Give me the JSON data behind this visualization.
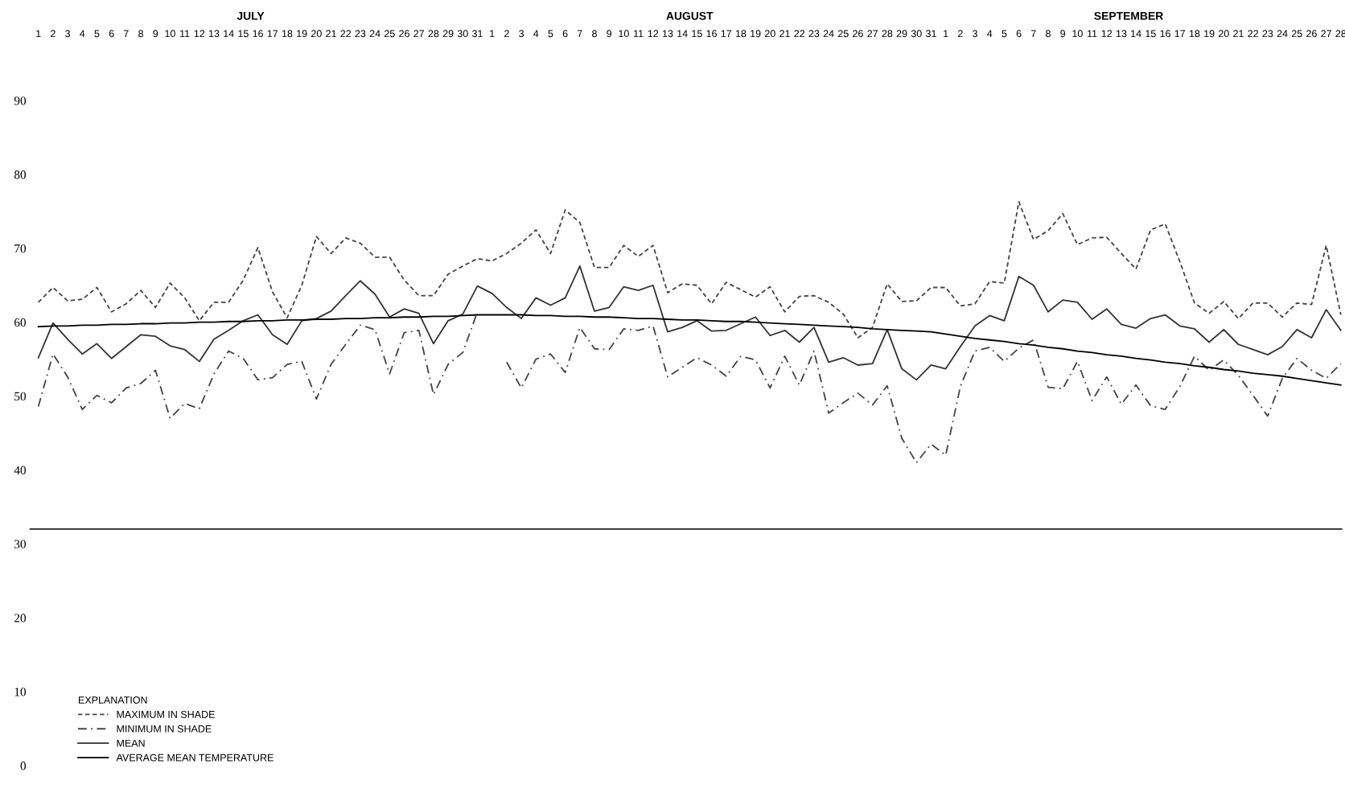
{
  "chart_data": {
    "type": "line",
    "categories": [
      "1",
      "2",
      "3",
      "4",
      "5",
      "6",
      "7",
      "8",
      "9",
      "10",
      "11",
      "12",
      "13",
      "14",
      "15",
      "16",
      "17",
      "18",
      "19",
      "20",
      "21",
      "22",
      "23",
      "24",
      "25",
      "26",
      "27",
      "28",
      "29",
      "30",
      "31",
      "1",
      "2",
      "3",
      "4",
      "5",
      "6",
      "7",
      "8",
      "9",
      "10",
      "11",
      "12",
      "13",
      "14",
      "15",
      "16",
      "17",
      "18",
      "19",
      "20",
      "21",
      "22",
      "23",
      "24",
      "25",
      "26",
      "27",
      "28",
      "29",
      "30",
      "31",
      "1",
      "2",
      "3",
      "4",
      "5",
      "6",
      "7",
      "8",
      "9",
      "10",
      "11",
      "12",
      "13",
      "14",
      "15",
      "16",
      "17",
      "18",
      "19",
      "20",
      "21",
      "22",
      "23",
      "24",
      "25",
      "26",
      "27",
      "28"
    ],
    "series": [
      {
        "name": "MAXIMUM IN SHADE",
        "color": "#444444",
        "line_style": "dashed",
        "values": [
          62.7,
          64.7,
          62.9,
          63.1,
          64.7,
          61.4,
          62.5,
          64.3,
          62.0,
          65.3,
          63.3,
          60.2,
          62.7,
          62.7,
          65.7,
          70.1,
          64.1,
          60.6,
          65.0,
          71.6,
          69.3,
          71.4,
          70.7,
          68.8,
          68.8,
          65.7,
          63.6,
          63.6,
          66.5,
          67.6,
          68.6,
          68.3,
          69.3,
          70.7,
          72.5,
          69.3,
          75.2,
          73.5,
          67.4,
          67.4,
          70.4,
          68.9,
          70.4,
          64.0,
          65.2,
          65.0,
          62.5,
          65.4,
          64.4,
          63.4,
          64.8,
          61.4,
          63.5,
          63.6,
          62.7,
          61.1,
          57.9,
          59.3,
          65.2,
          62.8,
          62.9,
          64.7,
          64.7,
          62.2,
          62.5,
          65.5,
          65.3,
          76.3,
          71.2,
          72.4,
          74.7,
          70.5,
          71.4,
          71.5,
          69.3,
          67.2,
          72.5,
          73.3,
          68.2,
          62.6,
          61.2,
          62.8,
          60.5,
          62.6,
          62.6,
          60.7,
          62.6,
          62.4,
          70.4,
          61.0
        ]
      },
      {
        "name": "MINIMUM IN SHADE",
        "color": "#444444",
        "line_style": "dashdot",
        "values": [
          48.6,
          55.7,
          52.6,
          48.2,
          50.1,
          49.1,
          51.1,
          51.7,
          53.5,
          47.0,
          49.0,
          48.3,
          53.0,
          56.1,
          55.1,
          52.2,
          52.5,
          54.3,
          54.7,
          49.6,
          54.3,
          57.0,
          59.6,
          59.0,
          53.0,
          58.6,
          58.9,
          50.2,
          54.3,
          55.9,
          61.4,
          null,
          54.6,
          51.1,
          55.0,
          55.7,
          53.2,
          59.3,
          56.4,
          56.3,
          59.1,
          58.9,
          59.5,
          52.6,
          53.9,
          55.2,
          54.2,
          52.7,
          55.4,
          54.9,
          51.1,
          55.4,
          51.5,
          56.1,
          47.7,
          49.1,
          50.4,
          48.8,
          51.4,
          44.3,
          41.0,
          43.5,
          42.0,
          51.3,
          56.1,
          56.6,
          54.7,
          56.5,
          57.6,
          51.2,
          51.0,
          54.7,
          49.4,
          52.6,
          48.9,
          51.5,
          48.7,
          48.2,
          51.3,
          55.4,
          53.5,
          54.9,
          52.8,
          50.1,
          47.3,
          52.4,
          55.1,
          53.5,
          52.4,
          54.4
        ]
      },
      {
        "name": "MEAN",
        "color": "#333333",
        "line_style": "solid",
        "values": [
          55.2,
          59.9,
          57.7,
          55.7,
          57.1,
          55.1,
          56.7,
          58.3,
          58.1,
          56.8,
          56.3,
          54.7,
          57.7,
          58.9,
          60.2,
          61.0,
          58.3,
          57.0,
          60.2,
          60.5,
          61.5,
          63.6,
          65.6,
          63.8,
          60.7,
          61.8,
          61.2,
          57.1,
          60.2,
          61.1,
          64.9,
          63.9,
          62.0,
          60.5,
          63.3,
          62.3,
          63.3,
          67.6,
          61.5,
          62.0,
          64.8,
          64.3,
          65.0,
          58.7,
          59.3,
          60.2,
          58.8,
          58.9,
          59.8,
          60.7,
          58.2,
          58.9,
          57.3,
          59.3,
          54.6,
          55.2,
          54.2,
          54.4,
          59.0,
          53.7,
          52.2,
          54.2,
          53.7,
          56.7,
          59.5,
          60.9,
          60.2,
          66.2,
          65.0,
          61.4,
          63.0,
          62.7,
          60.4,
          61.8,
          59.7,
          59.2,
          60.5,
          61.0,
          59.5,
          59.1,
          57.3,
          59.0,
          57.0,
          56.3,
          55.6,
          56.7,
          59.0,
          57.9,
          61.7,
          58.9
        ]
      },
      {
        "name": "AVERAGE MEAN TEMPERATURE",
        "color": "#000000",
        "line_style": "solid",
        "values": [
          59.4,
          59.5,
          59.5,
          59.6,
          59.6,
          59.7,
          59.7,
          59.8,
          59.8,
          59.9,
          59.9,
          60.0,
          60.0,
          60.1,
          60.1,
          60.2,
          60.2,
          60.3,
          60.3,
          60.4,
          60.4,
          60.5,
          60.5,
          60.6,
          60.6,
          60.7,
          60.7,
          60.8,
          60.8,
          60.9,
          61.0,
          61.0,
          61.0,
          61.0,
          60.9,
          60.9,
          60.8,
          60.8,
          60.7,
          60.7,
          60.6,
          60.5,
          60.5,
          60.4,
          60.3,
          60.3,
          60.2,
          60.1,
          60.1,
          60.0,
          59.9,
          59.8,
          59.7,
          59.6,
          59.5,
          59.4,
          59.3,
          59.1,
          59.0,
          58.9,
          58.8,
          58.7,
          58.4,
          58.1,
          57.8,
          57.6,
          57.4,
          57.1,
          56.9,
          56.6,
          56.4,
          56.1,
          55.9,
          55.6,
          55.4,
          55.1,
          54.9,
          54.6,
          54.4,
          54.1,
          53.9,
          53.6,
          53.4,
          53.1,
          52.9,
          52.7,
          52.4,
          52.1,
          51.8,
          51.5
        ]
      }
    ],
    "ylim": [
      0,
      90
    ],
    "yticks": [
      0,
      10,
      20,
      30,
      40,
      50,
      60,
      70,
      80,
      90
    ],
    "ref_lines": [
      {
        "axis": "y",
        "value": 32,
        "color": "#222222"
      }
    ],
    "legend": "bottom left",
    "legend_title": "EXPLANATION",
    "grid": false,
    "marker": "none",
    "annotations": [
      "JULY",
      "AUGUST",
      "SEPTEMBER"
    ]
  }
}
